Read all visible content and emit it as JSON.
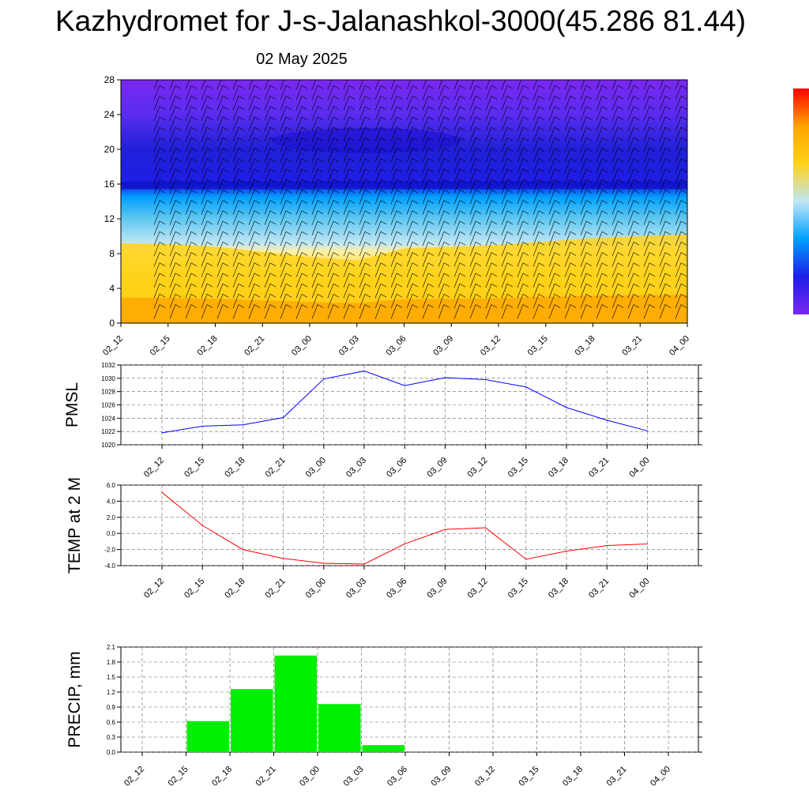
{
  "header": {
    "title": "Kazhydromet for J-s-Jalanashkol-3000(45.286 81.44)",
    "date": "02 May 2025"
  },
  "colors": {
    "pmsl_line": "#0000ff",
    "temp_line": "#ff0000",
    "precip_bar": "#00ee00",
    "warm_low": "#ffa500",
    "warm_mid": "#ffd21a",
    "cold_light": "#bfe6f5",
    "cold_mid": "#00a0ff",
    "deep_blue": "#1e1ee6",
    "violet": "#7a28f0"
  },
  "chart_data": [
    {
      "type": "heatmap",
      "description_of_field": "Vertical cross-section with wind barbs",
      "x": [
        "02_12",
        "02_15",
        "02_18",
        "02_21",
        "03_00",
        "03_03",
        "03_06",
        "03_09",
        "03_12",
        "03_15",
        "03_18",
        "03_21",
        "04_00"
      ],
      "ylim": [
        0,
        28
      ],
      "yticks": [
        "0",
        "4",
        "8",
        "12",
        "16",
        "20",
        "24",
        "28"
      ],
      "freezing_level": [
        9.2,
        9.1,
        8.8,
        8.2,
        7.6,
        7.2,
        8.6,
        8.8,
        9.0,
        9.4,
        9.8,
        10.0,
        10.2
      ],
      "colorbar": [
        "#7a28f0",
        "#1e1ee6",
        "#00a0ff",
        "#bfe6f5",
        "#ffd21a",
        "#ffa500",
        "#ff0000"
      ]
    },
    {
      "type": "line",
      "ylabel": "PMSL",
      "x": [
        "02_12",
        "02_15",
        "02_18",
        "02_21",
        "03_00",
        "03_03",
        "03_06",
        "03_09",
        "03_12",
        "03_15",
        "03_18",
        "03_21",
        "04_00"
      ],
      "values": [
        1021.8,
        1022.8,
        1023.0,
        1024.1,
        1029.9,
        1031.1,
        1028.9,
        1030.1,
        1029.8,
        1028.7,
        1025.6,
        1023.7,
        1022.1
      ],
      "ylim": [
        1020,
        1032
      ],
      "yticks": [
        "1020",
        "1022",
        "1024",
        "1026",
        "1028",
        "1030",
        "1032"
      ]
    },
    {
      "type": "line",
      "ylabel": "TEMP at 2 M",
      "x": [
        "02_12",
        "02_15",
        "02_18",
        "02_21",
        "03_00",
        "03_03",
        "03_06",
        "03_09",
        "03_12",
        "03_15",
        "03_18",
        "03_21",
        "04_00"
      ],
      "values": [
        5.1,
        1.0,
        -2.0,
        -3.1,
        -3.7,
        -3.8,
        -1.3,
        0.5,
        0.7,
        -3.2,
        -2.2,
        -1.5,
        -1.3
      ],
      "ylim": [
        -4,
        6
      ],
      "yticks": [
        "-4.0",
        "-2.0",
        "0.0",
        "2.0",
        "4.0",
        "6.0"
      ]
    },
    {
      "type": "bar",
      "ylabel": "PRECIP, mm",
      "x": [
        "02_12",
        "02_15",
        "02_18",
        "02_21",
        "03_00",
        "03_03",
        "03_06",
        "03_09",
        "03_12",
        "03_15",
        "03_18",
        "03_21",
        "04_00"
      ],
      "values": [
        0,
        0,
        0.62,
        1.26,
        1.93,
        0.96,
        0.14,
        0,
        0,
        0,
        0,
        0,
        0
      ],
      "ylim": [
        0,
        2.1
      ],
      "yticks": [
        "0.0",
        "0.3",
        "0.6",
        "0.9",
        "1.2",
        "1.5",
        "1.8",
        "2.1"
      ]
    }
  ]
}
